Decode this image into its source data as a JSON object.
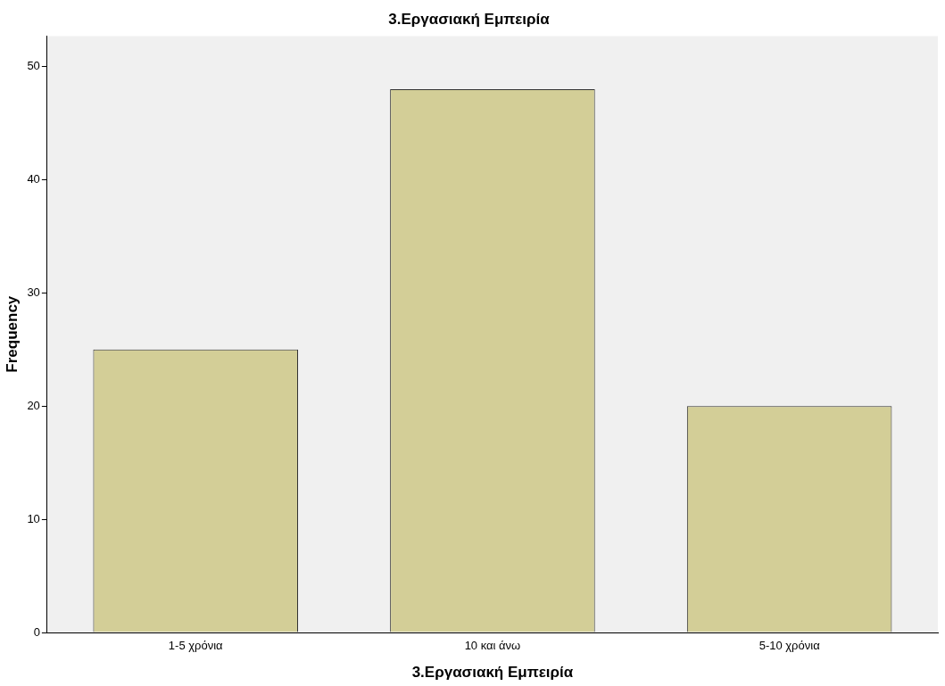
{
  "chart_data": {
    "type": "bar",
    "title": "3.Εργασιακή Εμπειρία",
    "xlabel": "3.Εργασιακή Εμπειρία",
    "ylabel": "Frequency",
    "categories": [
      "1-5 χρόνια",
      "10 και άνω",
      "5-10 χρόνια"
    ],
    "values": [
      25,
      48,
      20
    ],
    "color": "#d3ce97",
    "ylim": [
      0,
      52.7
    ],
    "yticks": [
      0,
      10,
      20,
      30,
      40,
      50
    ],
    "grid": false,
    "legend": false
  }
}
